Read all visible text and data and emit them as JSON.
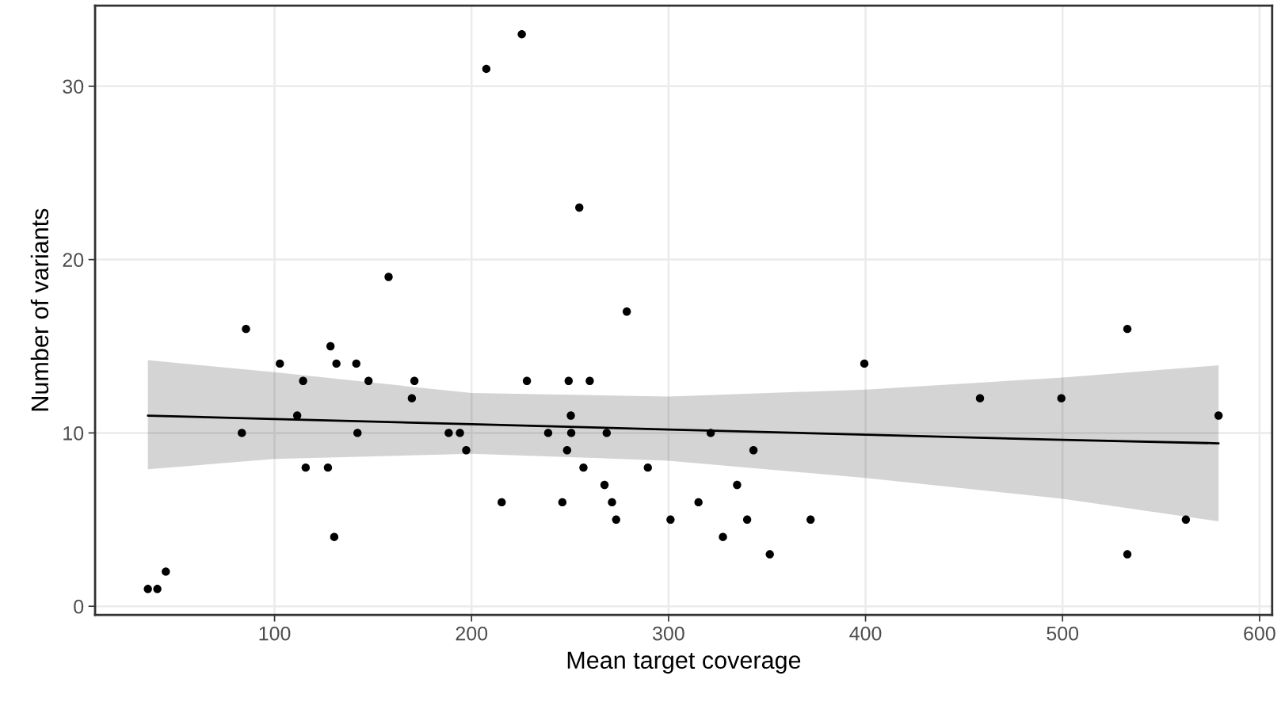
{
  "chart_data": {
    "type": "scatter",
    "xlabel": "Mean target coverage",
    "ylabel": "Number of variants",
    "xlim": [
      8.9,
      606.4
    ],
    "ylim": [
      -0.5,
      34.65
    ],
    "xticks": [
      100,
      200,
      300,
      400,
      500,
      600
    ],
    "yticks": [
      0,
      10,
      20,
      30
    ],
    "grid": true,
    "legend": false,
    "marker": "circle",
    "series": [
      {
        "color": "#000000",
        "x": [
          35.7,
          40.5,
          44.8,
          83.4,
          85.5,
          102.7,
          111.5,
          114.5,
          115.8,
          127.1,
          128.4,
          130.3,
          131.4,
          141.5,
          142.1,
          147.7,
          157.9,
          169.7,
          171.0,
          188.4,
          194.1,
          197.3,
          207.5,
          215.3,
          225.5,
          228.1,
          238.9,
          246.1,
          248.5,
          249.3,
          250.4,
          250.6,
          254.7,
          256.8,
          260.0,
          267.5,
          268.6,
          271.3,
          273.4,
          278.8,
          289.5,
          301.0,
          315.2,
          321.4,
          327.6,
          334.8,
          339.9,
          343.1,
          351.4,
          372.1,
          399.4,
          458.1,
          499.4,
          532.9,
          532.9,
          562.6,
          579.2
        ],
        "values": [
          1,
          1,
          2,
          10,
          16,
          14,
          11,
          13,
          8,
          8,
          15,
          4,
          14,
          14,
          10,
          13,
          19,
          12,
          13,
          10,
          10,
          9,
          31,
          6,
          33,
          13,
          10,
          6,
          9,
          13,
          11,
          10,
          23,
          8,
          13,
          7,
          10,
          6,
          5,
          17,
          8,
          5,
          6,
          10,
          4,
          7,
          5,
          9,
          3,
          5,
          14,
          12,
          12,
          16,
          3,
          5,
          11
        ]
      },
      {
        "type": "line",
        "color": "#000000",
        "marker": "none",
        "line_style": "solid",
        "x": [
          35.7,
          100,
          200,
          300,
          400,
          500,
          579.2
        ],
        "values": [
          11.0,
          10.8,
          10.5,
          10.2,
          9.9,
          9.6,
          9.4
        ],
        "lower": [
          7.9,
          8.5,
          8.8,
          8.4,
          7.4,
          6.2,
          4.9
        ],
        "upper": [
          14.2,
          13.5,
          12.3,
          12.1,
          12.5,
          13.2,
          13.9
        ]
      }
    ]
  }
}
